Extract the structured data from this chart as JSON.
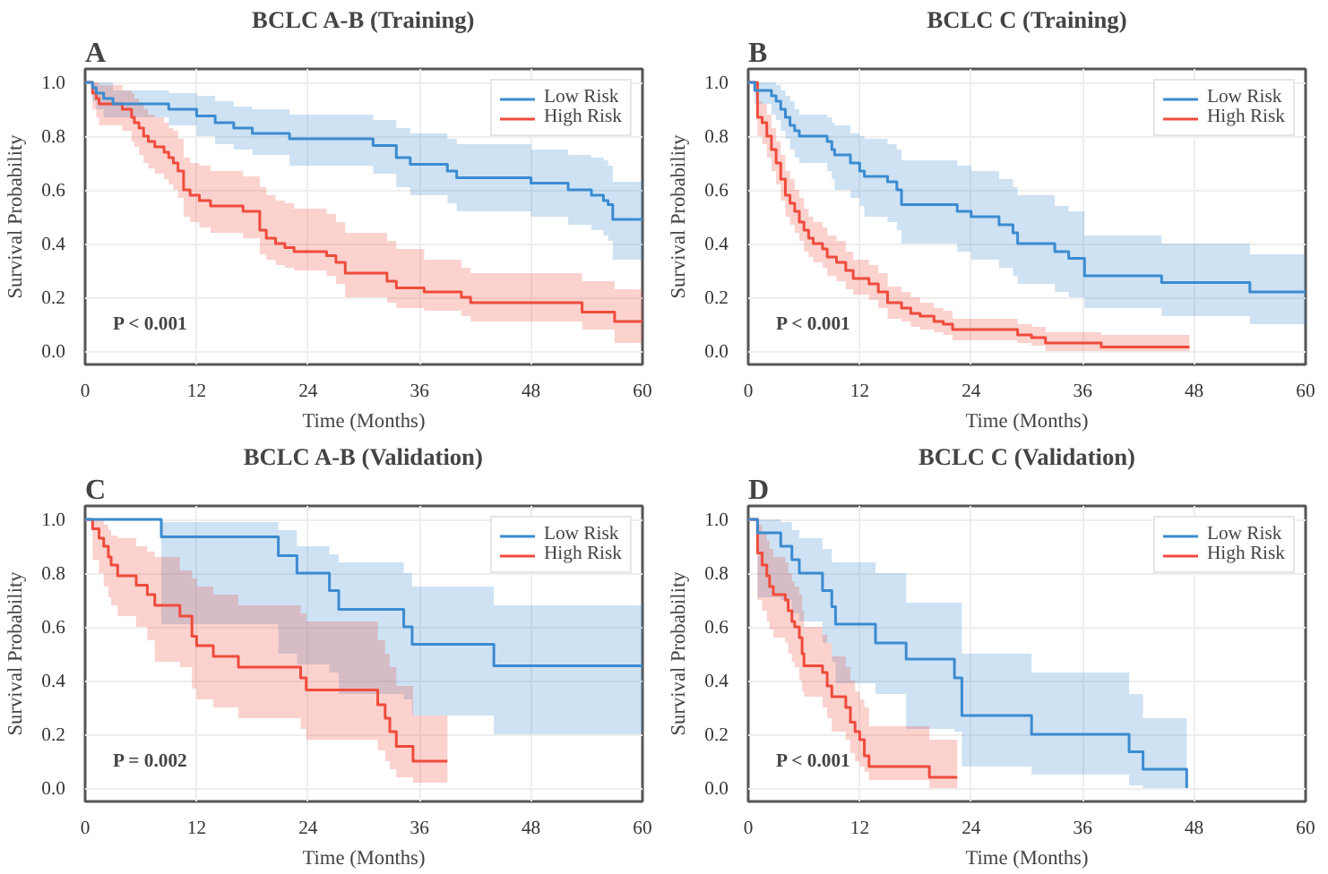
{
  "chart_data": [
    {
      "type": "step",
      "title": "BCLC A-B (Training)",
      "xlabel": "Time (Months)",
      "ylabel": "Survival Probability",
      "annotations": [
        "A",
        "P < 0.001"
      ],
      "xlim": [
        0,
        60
      ],
      "xticks": [
        0,
        12,
        24,
        36,
        48,
        60
      ],
      "ylim": [
        -0.05,
        1.05
      ],
      "yticks": [
        {
          "value": 0,
          "label": "0.0"
        },
        {
          "value": 0.2,
          "label": "0.2"
        },
        {
          "value": 0.4,
          "label": "0.4"
        },
        {
          "value": 0.6,
          "label": "0.6"
        },
        {
          "value": 0.8,
          "label": "0.8"
        },
        {
          "value": 1,
          "label": "1.0"
        }
      ],
      "grid": true,
      "legend": "top right",
      "series": [
        {
          "name": "Low Risk",
          "color": "#3b8bd0",
          "x": [
            0,
            0.8,
            1.2,
            2,
            3,
            9,
            12,
            14,
            16,
            18,
            22,
            31,
            33.5,
            35,
            39,
            40,
            48,
            52,
            54.5,
            55.8,
            56.3,
            56.8,
            60
          ],
          "values": [
            1,
            0.98,
            0.96,
            0.94,
            0.92,
            0.9,
            0.875,
            0.85,
            0.83,
            0.81,
            0.79,
            0.765,
            0.72,
            0.695,
            0.67,
            0.645,
            0.625,
            0.6,
            0.58,
            0.56,
            0.545,
            0.49,
            0.49
          ],
          "lower": [
            1,
            0.93,
            0.9,
            0.87,
            0.87,
            0.84,
            0.8,
            0.77,
            0.75,
            0.73,
            0.69,
            0.66,
            0.61,
            0.58,
            0.55,
            0.52,
            0.5,
            0.47,
            0.45,
            0.43,
            0.41,
            0.34,
            0.34
          ],
          "upper": [
            1,
            1,
            1,
            1,
            0.97,
            0.96,
            0.95,
            0.93,
            0.91,
            0.9,
            0.88,
            0.86,
            0.83,
            0.81,
            0.79,
            0.77,
            0.75,
            0.73,
            0.72,
            0.71,
            0.69,
            0.63,
            0.63
          ]
        },
        {
          "name": "High Risk",
          "color": "#ef4b3c",
          "x": [
            0,
            0.8,
            1.2,
            1.5,
            4,
            5,
            5.3,
            5.8,
            6.3,
            6.8,
            7.5,
            8.5,
            9,
            9.5,
            10,
            10.6,
            11.3,
            12.3,
            13.5,
            17,
            18.8,
            19.5,
            20.5,
            21.5,
            22.5,
            26,
            27,
            28,
            32.5,
            33.5,
            36.5,
            40.5,
            41.5,
            53.5,
            57,
            60
          ],
          "values": [
            1,
            0.96,
            0.94,
            0.92,
            0.9,
            0.87,
            0.85,
            0.83,
            0.8,
            0.78,
            0.76,
            0.74,
            0.72,
            0.7,
            0.67,
            0.6,
            0.58,
            0.56,
            0.54,
            0.52,
            0.45,
            0.42,
            0.4,
            0.385,
            0.37,
            0.355,
            0.33,
            0.29,
            0.26,
            0.235,
            0.22,
            0.2,
            0.18,
            0.145,
            0.11,
            0.11
          ],
          "lower": [
            1,
            0.9,
            0.87,
            0.84,
            0.82,
            0.78,
            0.76,
            0.73,
            0.7,
            0.68,
            0.66,
            0.64,
            0.62,
            0.6,
            0.57,
            0.5,
            0.48,
            0.46,
            0.44,
            0.42,
            0.36,
            0.34,
            0.32,
            0.31,
            0.3,
            0.28,
            0.25,
            0.2,
            0.18,
            0.16,
            0.15,
            0.13,
            0.11,
            0.08,
            0.03,
            0.03
          ],
          "upper": [
            1,
            1,
            1,
            0.99,
            0.97,
            0.96,
            0.94,
            0.92,
            0.9,
            0.88,
            0.87,
            0.85,
            0.83,
            0.82,
            0.79,
            0.72,
            0.7,
            0.69,
            0.67,
            0.65,
            0.61,
            0.58,
            0.56,
            0.55,
            0.53,
            0.51,
            0.48,
            0.44,
            0.41,
            0.38,
            0.34,
            0.31,
            0.29,
            0.26,
            0.23,
            0.23
          ]
        }
      ]
    },
    {
      "type": "step",
      "title": "BCLC C (Training)",
      "xlabel": "Time (Months)",
      "ylabel": "Survival Probability",
      "annotations": [
        "B",
        "P < 0.001"
      ],
      "xlim": [
        0,
        60
      ],
      "xticks": [
        0,
        12,
        24,
        36,
        48,
        60
      ],
      "ylim": [
        -0.05,
        1.05
      ],
      "yticks": [
        {
          "value": 0,
          "label": "0.0"
        },
        {
          "value": 0.2,
          "label": "0.2"
        },
        {
          "value": 0.4,
          "label": "0.4"
        },
        {
          "value": 0.6,
          "label": "0.6"
        },
        {
          "value": 0.8,
          "label": "0.8"
        },
        {
          "value": 1,
          "label": "1.0"
        }
      ],
      "grid": true,
      "legend": "top right",
      "series": [
        {
          "name": "Low Risk",
          "color": "#3b8bd0",
          "x": [
            0,
            0.7,
            2.5,
            3,
            3.5,
            4,
            4.5,
            5,
            5.5,
            8.5,
            9,
            9.3,
            11,
            12,
            12.5,
            15,
            16,
            16.5,
            22.5,
            24,
            27,
            28.5,
            29,
            33,
            34.5,
            36.2,
            44.5,
            54,
            60
          ],
          "values": [
            1,
            0.97,
            0.95,
            0.93,
            0.9,
            0.87,
            0.84,
            0.82,
            0.8,
            0.78,
            0.75,
            0.73,
            0.7,
            0.67,
            0.65,
            0.63,
            0.6,
            0.545,
            0.52,
            0.5,
            0.47,
            0.44,
            0.4,
            0.37,
            0.345,
            0.28,
            0.255,
            0.22,
            0.22
          ],
          "lower": [
            1,
            0.92,
            0.88,
            0.86,
            0.82,
            0.79,
            0.75,
            0.72,
            0.7,
            0.67,
            0.64,
            0.6,
            0.57,
            0.54,
            0.5,
            0.48,
            0.45,
            0.4,
            0.37,
            0.34,
            0.31,
            0.28,
            0.25,
            0.22,
            0.2,
            0.16,
            0.13,
            0.1,
            0.1
          ],
          "upper": [
            1,
            1,
            1,
            0.99,
            0.97,
            0.95,
            0.93,
            0.9,
            0.88,
            0.87,
            0.85,
            0.84,
            0.81,
            0.8,
            0.79,
            0.77,
            0.75,
            0.71,
            0.69,
            0.67,
            0.64,
            0.61,
            0.58,
            0.54,
            0.52,
            0.43,
            0.4,
            0.36,
            0.36
          ]
        },
        {
          "name": "High Risk",
          "color": "#ef4b3c",
          "x": [
            0,
            1,
            1.5,
            2,
            2.5,
            3,
            3.5,
            4,
            4.5,
            5,
            5.5,
            6,
            6.5,
            7,
            8,
            8.5,
            9.5,
            10.5,
            11.3,
            13,
            14,
            15,
            16.5,
            17.5,
            18.5,
            20,
            21,
            22,
            29,
            30.5,
            32,
            38,
            47.5
          ],
          "values": [
            1,
            0.87,
            0.85,
            0.8,
            0.75,
            0.7,
            0.64,
            0.58,
            0.55,
            0.52,
            0.48,
            0.45,
            0.42,
            0.4,
            0.38,
            0.35,
            0.33,
            0.3,
            0.27,
            0.25,
            0.22,
            0.18,
            0.16,
            0.14,
            0.13,
            0.11,
            0.1,
            0.08,
            0.06,
            0.05,
            0.03,
            0.015,
            0.015
          ],
          "lower": [
            1,
            0.8,
            0.77,
            0.72,
            0.67,
            0.62,
            0.56,
            0.5,
            0.47,
            0.44,
            0.41,
            0.37,
            0.35,
            0.33,
            0.31,
            0.28,
            0.26,
            0.23,
            0.21,
            0.19,
            0.16,
            0.12,
            0.11,
            0.09,
            0.08,
            0.07,
            0.06,
            0.04,
            0.03,
            0.02,
            0,
            0,
            0
          ],
          "upper": [
            1,
            0.93,
            0.92,
            0.88,
            0.83,
            0.78,
            0.73,
            0.67,
            0.64,
            0.6,
            0.57,
            0.53,
            0.5,
            0.48,
            0.46,
            0.43,
            0.41,
            0.37,
            0.34,
            0.32,
            0.29,
            0.24,
            0.22,
            0.2,
            0.18,
            0.16,
            0.15,
            0.12,
            0.1,
            0.09,
            0.07,
            0.06,
            0.06
          ]
        }
      ]
    },
    {
      "type": "step",
      "title": "BCLC A-B (Validation)",
      "xlabel": "Time (Months)",
      "ylabel": "Survival Probability",
      "annotations": [
        "C",
        "P = 0.002"
      ],
      "xlim": [
        0,
        60
      ],
      "xticks": [
        0,
        12,
        24,
        36,
        48,
        60
      ],
      "ylim": [
        -0.05,
        1.05
      ],
      "yticks": [
        {
          "value": 0,
          "label": "0.0"
        },
        {
          "value": 0.2,
          "label": "0.2"
        },
        {
          "value": 0.4,
          "label": "0.4"
        },
        {
          "value": 0.6,
          "label": "0.6"
        },
        {
          "value": 0.8,
          "label": "0.8"
        },
        {
          "value": 1,
          "label": "1.0"
        }
      ],
      "grid": true,
      "legend": "top right",
      "series": [
        {
          "name": "Low Risk",
          "color": "#3b8bd0",
          "x": [
            0,
            8.2,
            20.8,
            22.8,
            26.3,
            27.3,
            34.3,
            35.2,
            44,
            60
          ],
          "values": [
            1,
            0.935,
            0.865,
            0.8,
            0.735,
            0.665,
            0.6,
            0.535,
            0.455,
            0.455
          ],
          "lower": [
            1,
            0.61,
            0.5,
            0.46,
            0.43,
            0.35,
            0.33,
            0.27,
            0.2,
            0.2
          ],
          "upper": [
            1,
            0.99,
            0.96,
            0.9,
            0.87,
            0.84,
            0.8,
            0.75,
            0.68,
            0.68
          ]
        },
        {
          "name": "High Risk",
          "color": "#ef4b3c",
          "x": [
            0,
            0.8,
            1.5,
            2,
            2.5,
            2.8,
            3.5,
            5.5,
            6.7,
            7.5,
            10.2,
            11.5,
            12,
            13.8,
            16.5,
            23.2,
            23.8,
            31.5,
            32.3,
            32.8,
            33.5,
            35.3,
            39
          ],
          "values": [
            1,
            0.965,
            0.93,
            0.9,
            0.86,
            0.83,
            0.79,
            0.755,
            0.72,
            0.68,
            0.64,
            0.565,
            0.53,
            0.49,
            0.45,
            0.41,
            0.365,
            0.31,
            0.26,
            0.21,
            0.155,
            0.1,
            0.1
          ],
          "lower": [
            1,
            0.85,
            0.8,
            0.75,
            0.71,
            0.68,
            0.64,
            0.6,
            0.55,
            0.47,
            0.45,
            0.37,
            0.33,
            0.3,
            0.26,
            0.22,
            0.18,
            0.14,
            0.1,
            0.07,
            0.04,
            0.02,
            0.02
          ],
          "upper": [
            1,
            1,
            1,
            0.98,
            0.96,
            0.94,
            0.93,
            0.9,
            0.88,
            0.86,
            0.81,
            0.78,
            0.75,
            0.72,
            0.68,
            0.65,
            0.62,
            0.55,
            0.5,
            0.45,
            0.38,
            0.27,
            0.27
          ]
        }
      ]
    },
    {
      "type": "step",
      "title": "BCLC C (Validation)",
      "xlabel": "Time (Months)",
      "ylabel": "Survival Probability",
      "annotations": [
        "D",
        "P < 0.001"
      ],
      "xlim": [
        0,
        60
      ],
      "xticks": [
        0,
        12,
        24,
        36,
        48,
        60
      ],
      "ylim": [
        -0.05,
        1.05
      ],
      "yticks": [
        {
          "value": 0,
          "label": "0.0"
        },
        {
          "value": 0.2,
          "label": "0.2"
        },
        {
          "value": 0.4,
          "label": "0.4"
        },
        {
          "value": 0.6,
          "label": "0.6"
        },
        {
          "value": 0.8,
          "label": "0.8"
        },
        {
          "value": 1,
          "label": "1.0"
        }
      ],
      "grid": true,
      "legend": "top right",
      "series": [
        {
          "name": "Low Risk",
          "color": "#3b8bd0",
          "x": [
            0,
            1,
            3.5,
            4.7,
            5.5,
            8,
            9,
            9.4,
            13.7,
            17,
            22.2,
            23,
            30.5,
            41,
            42.5,
            47.2
          ],
          "values": [
            1,
            0.95,
            0.9,
            0.85,
            0.8,
            0.735,
            0.675,
            0.61,
            0.54,
            0.48,
            0.41,
            0.27,
            0.2,
            0.135,
            0.07,
            0
          ],
          "lower": [
            1,
            0.71,
            0.7,
            0.65,
            0.62,
            0.54,
            0.47,
            0.39,
            0.35,
            0.22,
            0.21,
            0.08,
            0.05,
            0.01,
            0,
            0
          ],
          "upper": [
            1,
            1,
            0.99,
            0.96,
            0.93,
            0.89,
            0.84,
            0.84,
            0.8,
            0.69,
            0.69,
            0.5,
            0.43,
            0.35,
            0.26,
            0.26
          ]
        },
        {
          "name": "High Risk",
          "color": "#ef4b3c",
          "x": [
            0,
            1,
            1.5,
            2,
            2.3,
            2.7,
            4,
            4.3,
            4.7,
            5,
            5.5,
            5.8,
            6,
            8,
            8.5,
            9,
            10.5,
            11,
            11.5,
            12,
            12.5,
            13,
            19.5,
            22.5
          ],
          "values": [
            1,
            0.875,
            0.83,
            0.79,
            0.75,
            0.72,
            0.7,
            0.66,
            0.62,
            0.6,
            0.56,
            0.5,
            0.455,
            0.43,
            0.38,
            0.34,
            0.3,
            0.245,
            0.21,
            0.18,
            0.12,
            0.08,
            0.04,
            0.04
          ],
          "lower": [
            1,
            0.7,
            0.66,
            0.62,
            0.59,
            0.56,
            0.54,
            0.5,
            0.47,
            0.45,
            0.4,
            0.36,
            0.34,
            0.3,
            0.26,
            0.21,
            0.18,
            0.13,
            0.1,
            0.08,
            0.06,
            0.03,
            0,
            0
          ],
          "upper": [
            1,
            0.98,
            0.95,
            0.92,
            0.89,
            0.86,
            0.84,
            0.8,
            0.77,
            0.75,
            0.72,
            0.66,
            0.6,
            0.57,
            0.54,
            0.49,
            0.45,
            0.4,
            0.36,
            0.33,
            0.3,
            0.23,
            0.18,
            0.18
          ]
        }
      ]
    }
  ]
}
